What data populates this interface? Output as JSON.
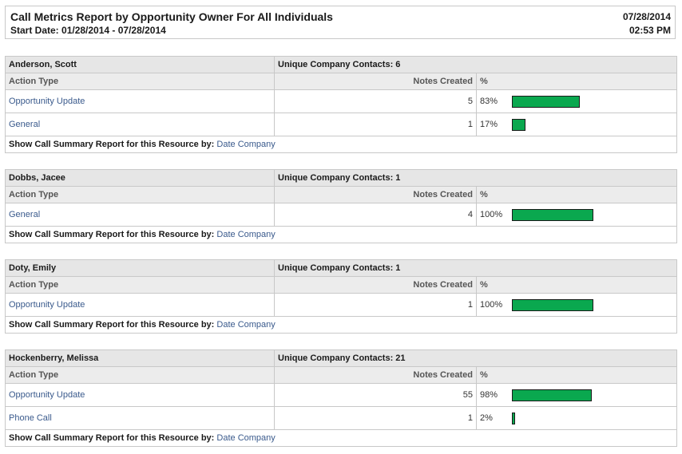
{
  "report": {
    "title": "Call Metrics Report by Opportunity Owner For All Individuals",
    "subtitle": "Start Date: 01/28/2014 - 07/28/2014",
    "date": "07/28/2014",
    "time": "02:53 PM"
  },
  "labels": {
    "action_type": "Action Type",
    "notes_created": "Notes Created",
    "percent": "%",
    "footer_prefix": "Show Call Summary Report for this Resource by:",
    "footer_link": "Date Company"
  },
  "colors": {
    "bar_fill": "#0aa84f",
    "link": "#3a5a8c"
  },
  "resources": [
    {
      "name": "Anderson, Scott",
      "unique_contacts": "Unique Company Contacts: 6",
      "rows": [
        {
          "action": "Opportunity Update",
          "notes": "5",
          "pct_label": "83%",
          "pct": 0.83
        },
        {
          "action": "General",
          "notes": "1",
          "pct_label": "17%",
          "pct": 0.17
        }
      ]
    },
    {
      "name": "Dobbs, Jacee",
      "unique_contacts": "Unique Company Contacts: 1",
      "rows": [
        {
          "action": "General",
          "notes": "4",
          "pct_label": "100%",
          "pct": 1.0
        }
      ]
    },
    {
      "name": "Doty, Emily",
      "unique_contacts": "Unique Company Contacts: 1",
      "rows": [
        {
          "action": "Opportunity Update",
          "notes": "1",
          "pct_label": "100%",
          "pct": 1.0
        }
      ]
    },
    {
      "name": "Hockenberry, Melissa",
      "unique_contacts": "Unique Company Contacts: 21",
      "rows": [
        {
          "action": "Opportunity Update",
          "notes": "55",
          "pct_label": "98%",
          "pct": 0.98
        },
        {
          "action": "Phone Call",
          "notes": "1",
          "pct_label": "2%",
          "pct": 0.02
        }
      ]
    }
  ]
}
